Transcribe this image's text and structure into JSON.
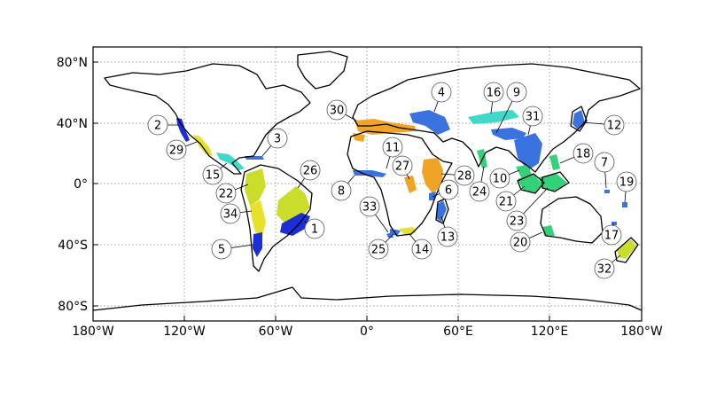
{
  "axes": {
    "x_ticks": [
      "180°W",
      "120°W",
      "60°W",
      "0°",
      "60°E",
      "120°E",
      "180°W"
    ],
    "y_ticks": [
      "80°N",
      "40°N",
      "0°",
      "40°S",
      "80°S"
    ],
    "grid": true,
    "grid_style": "dotted"
  },
  "colors": {
    "dark_blue": "#1c2fd6",
    "mid_blue": "#3a72e0",
    "cyan": "#3fd8c9",
    "green": "#33d17a",
    "yellow_green": "#c9dd2a",
    "yellow": "#e6e22c",
    "orange": "#f0a324"
  },
  "regions": [
    {
      "label": "1",
      "color": "dark_blue"
    },
    {
      "label": "2",
      "color": "dark_blue"
    },
    {
      "label": "3",
      "color": "mid_blue"
    },
    {
      "label": "4",
      "color": "mid_blue"
    },
    {
      "label": "5",
      "color": "dark_blue"
    },
    {
      "label": "6",
      "color": "mid_blue"
    },
    {
      "label": "7",
      "color": "mid_blue"
    },
    {
      "label": "8",
      "color": "mid_blue"
    },
    {
      "label": "9",
      "color": "mid_blue"
    },
    {
      "label": "10",
      "color": "green"
    },
    {
      "label": "11",
      "color": "orange"
    },
    {
      "label": "12",
      "color": "mid_blue"
    },
    {
      "label": "13",
      "color": "mid_blue"
    },
    {
      "label": "14",
      "color": "yellow"
    },
    {
      "label": "15",
      "color": "cyan"
    },
    {
      "label": "16",
      "color": "cyan"
    },
    {
      "label": "17",
      "color": "mid_blue"
    },
    {
      "label": "18",
      "color": "green"
    },
    {
      "label": "19",
      "color": "mid_blue"
    },
    {
      "label": "20",
      "color": "green"
    },
    {
      "label": "21",
      "color": "green"
    },
    {
      "label": "22",
      "color": "yellow_green"
    },
    {
      "label": "23",
      "color": "green"
    },
    {
      "label": "24",
      "color": "green"
    },
    {
      "label": "25",
      "color": "mid_blue"
    },
    {
      "label": "26",
      "color": "yellow_green"
    },
    {
      "label": "27",
      "color": "orange"
    },
    {
      "label": "28",
      "color": "orange"
    },
    {
      "label": "29",
      "color": "yellow"
    },
    {
      "label": "30",
      "color": "orange"
    },
    {
      "label": "31",
      "color": "mid_blue"
    },
    {
      "label": "32",
      "color": "yellow_green"
    },
    {
      "label": "33",
      "color": "mid_blue"
    },
    {
      "label": "34",
      "color": "yellow"
    }
  ]
}
